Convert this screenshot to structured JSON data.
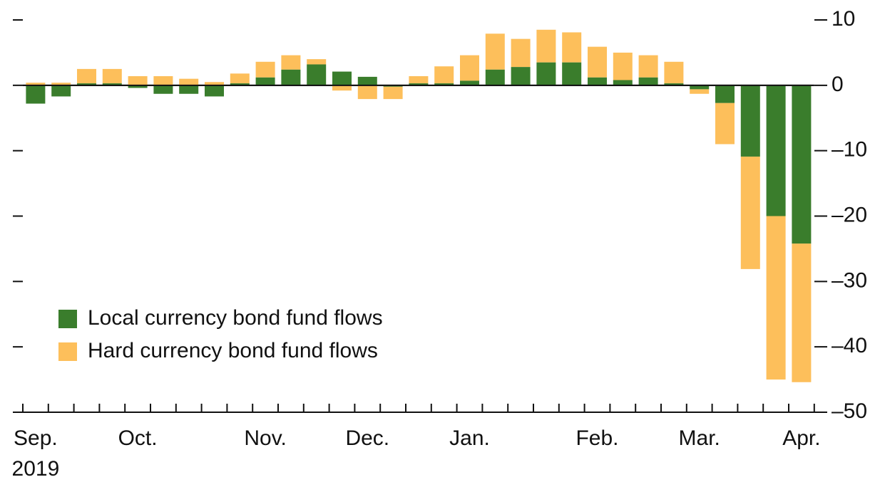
{
  "chart_data": {
    "type": "stacked_bar",
    "categories": [
      "Sep.",
      null,
      null,
      null,
      "Oct.",
      null,
      null,
      null,
      null,
      "Nov.",
      null,
      null,
      null,
      "Dec.",
      null,
      null,
      null,
      "Jan.",
      null,
      null,
      null,
      null,
      "Feb.",
      null,
      null,
      null,
      "Mar.",
      null,
      null,
      null,
      "Apr."
    ],
    "x_sublabel": "2019",
    "series": [
      {
        "name": "Local currency bond fund flows",
        "color": "#3a7d2c",
        "values": [
          -2.8,
          -1.7,
          0.3,
          0.3,
          -0.4,
          -1.3,
          -1.3,
          -1.7,
          0.3,
          1.2,
          2.4,
          3.2,
          2.1,
          1.3,
          -0.2,
          0.3,
          0.3,
          0.7,
          2.4,
          2.8,
          3.5,
          3.5,
          1.2,
          0.8,
          1.2,
          0.3,
          -0.6,
          -2.7,
          -10.9,
          -20,
          -24.2
        ]
      },
      {
        "name": "Hard currency bond fund flows",
        "color": "#fdbf5b",
        "values": [
          0.4,
          0.4,
          2.2,
          2.2,
          1.4,
          1.4,
          1.0,
          0.5,
          1.5,
          2.4,
          2.2,
          0.8,
          -0.8,
          -2.1,
          -1.9,
          1.1,
          2.6,
          3.9,
          5.5,
          4.3,
          5.0,
          4.6,
          4.7,
          4.2,
          3.4,
          3.3,
          -0.7,
          -6.3,
          -17.2,
          -25,
          -21.2
        ]
      }
    ],
    "ylim": [
      -50,
      10
    ],
    "yticks": [
      10,
      0,
      {
        "value": -10,
        "label": "–10"
      },
      {
        "value": -20,
        "label": "–20"
      },
      {
        "value": -30,
        "label": "–30"
      },
      {
        "value": -40,
        "label": "–40"
      },
      {
        "value": -50,
        "label": "–50"
      }
    ],
    "legend": "lower left"
  }
}
